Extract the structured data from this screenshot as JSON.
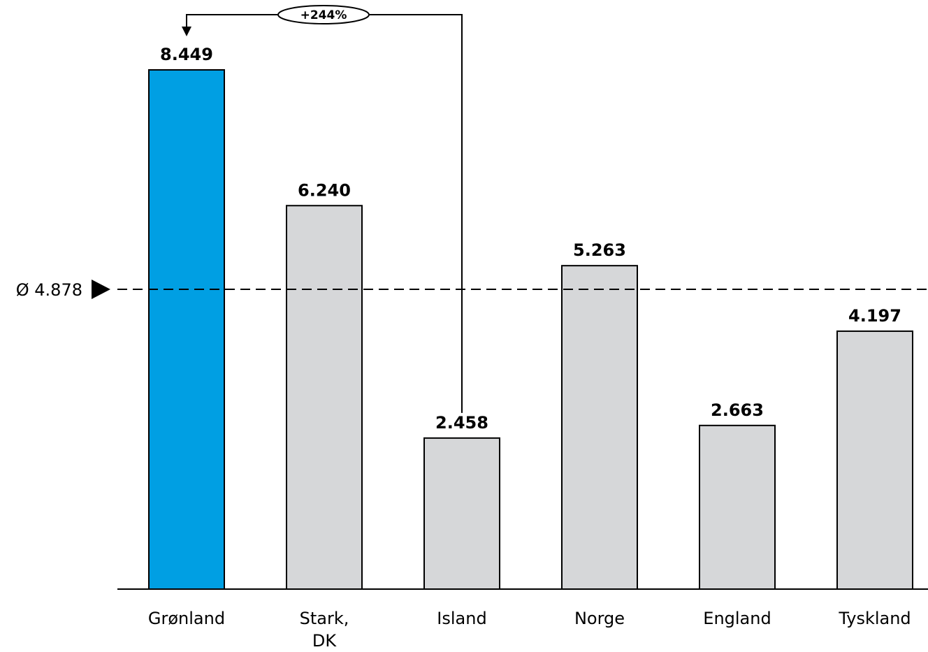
{
  "chart_data": {
    "type": "bar",
    "title": "",
    "xlabel": "",
    "ylabel": "",
    "categories": [
      "Grønland",
      "Stark, DK",
      "Island",
      "Norge",
      "England",
      "Tyskland"
    ],
    "category_lines": [
      [
        "Grønland"
      ],
      [
        "Stark,",
        "DK"
      ],
      [
        "Island"
      ],
      [
        "Norge"
      ],
      [
        "England"
      ],
      [
        "Tyskland"
      ]
    ],
    "values": [
      8449,
      6240,
      2458,
      5263,
      2663,
      4197
    ],
    "value_labels": [
      "8.449",
      "6.240",
      "2.458",
      "5.263",
      "2.663",
      "4.197"
    ],
    "ylim": [
      0,
      9000
    ],
    "grid": false,
    "average": {
      "value": 4878,
      "label": "Ø 4.878"
    },
    "annotation": {
      "label": "+244%",
      "from_category": "Island",
      "to_category": "Grønland"
    },
    "colors": {
      "highlight": "#009fe3",
      "default": "#d6d7d9",
      "outline": "#000000"
    },
    "highlight_index": 0
  }
}
